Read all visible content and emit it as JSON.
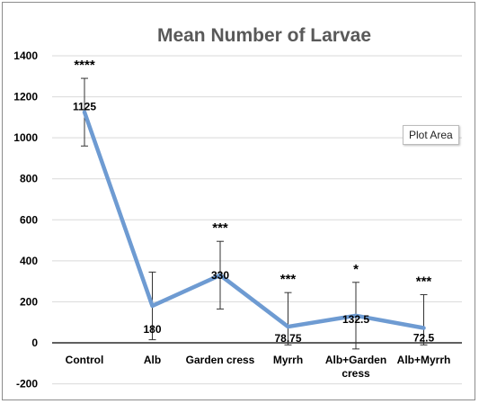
{
  "tooltip": {
    "label": "Plot Area"
  },
  "chart_data": {
    "type": "line",
    "title": "Mean Number of Larvae",
    "xlabel": "",
    "ylabel": "",
    "ylim": [
      -200,
      1400
    ],
    "yticks": [
      -200,
      0,
      200,
      400,
      600,
      800,
      1000,
      1200,
      1400
    ],
    "grid": true,
    "legend": "none",
    "categories": [
      "Control",
      "Alb",
      "Garden cress",
      "Myrrh",
      "Alb+Garden cress",
      "Alb+Myrrh"
    ],
    "series": [
      {
        "values": [
          1125,
          180,
          330,
          78.75,
          132.5,
          72.5
        ],
        "data_labels": [
          "1125",
          "180",
          "330",
          "78.75",
          "132.5",
          "72.5"
        ],
        "error_low": [
          960,
          15,
          165,
          -10,
          -30,
          -10
        ],
        "error_high": [
          1290,
          345,
          495,
          245,
          295,
          235
        ],
        "significance": [
          "****",
          "",
          "***",
          "***",
          "*",
          "***"
        ],
        "color": "#6e9bd2"
      }
    ],
    "colors": {
      "line": "#6e9bd2",
      "grid": "#d9d9d9",
      "axis": "#000000",
      "title": "#595959",
      "text": "#000000"
    }
  }
}
